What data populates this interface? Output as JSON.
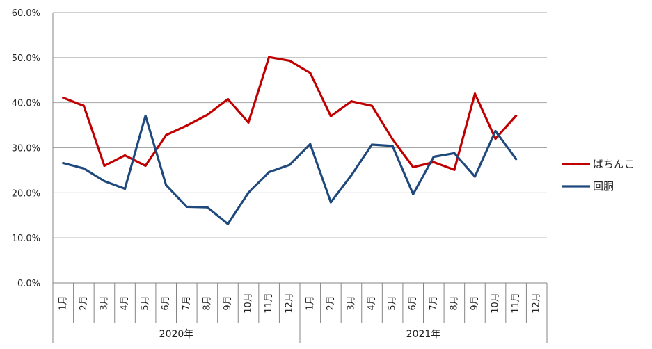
{
  "chart_data": {
    "type": "line",
    "title": "",
    "xlabel": "",
    "ylabel": "",
    "ylim": [
      0,
      60
    ],
    "y_ticks": [
      "0.0%",
      "10.0%",
      "20.0%",
      "30.0%",
      "40.0%",
      "50.0%",
      "60.0%"
    ],
    "categories": [
      "1月",
      "2月",
      "3月",
      "4月",
      "5月",
      "6月",
      "7月",
      "8月",
      "9月",
      "10月",
      "11月",
      "12月",
      "1月",
      "2月",
      "3月",
      "4月",
      "5月",
      "6月",
      "7月",
      "8月",
      "9月",
      "10月",
      "11月",
      "12月"
    ],
    "groups": [
      {
        "label": "2020年",
        "count": 12
      },
      {
        "label": "2021年",
        "count": 12
      }
    ],
    "grid": true,
    "legend_position": "right",
    "series": [
      {
        "name": "ぱちんこ",
        "color": "#c00000",
        "values": [
          41.1,
          39.3,
          26.0,
          28.3,
          26.0,
          32.8,
          34.9,
          37.3,
          40.8,
          35.6,
          50.1,
          49.3,
          46.6,
          37.0,
          40.3,
          39.3,
          31.9,
          25.7,
          26.8,
          25.1,
          42.0,
          32.0,
          37.1,
          null
        ]
      },
      {
        "name": "回胴",
        "color": "#1f497d",
        "values": [
          26.6,
          25.4,
          22.6,
          20.9,
          37.1,
          21.7,
          16.9,
          16.8,
          13.1,
          20.0,
          24.6,
          26.2,
          30.8,
          17.9,
          23.9,
          30.7,
          30.4,
          19.7,
          28.0,
          28.8,
          23.6,
          33.7,
          27.5,
          null
        ]
      }
    ]
  }
}
